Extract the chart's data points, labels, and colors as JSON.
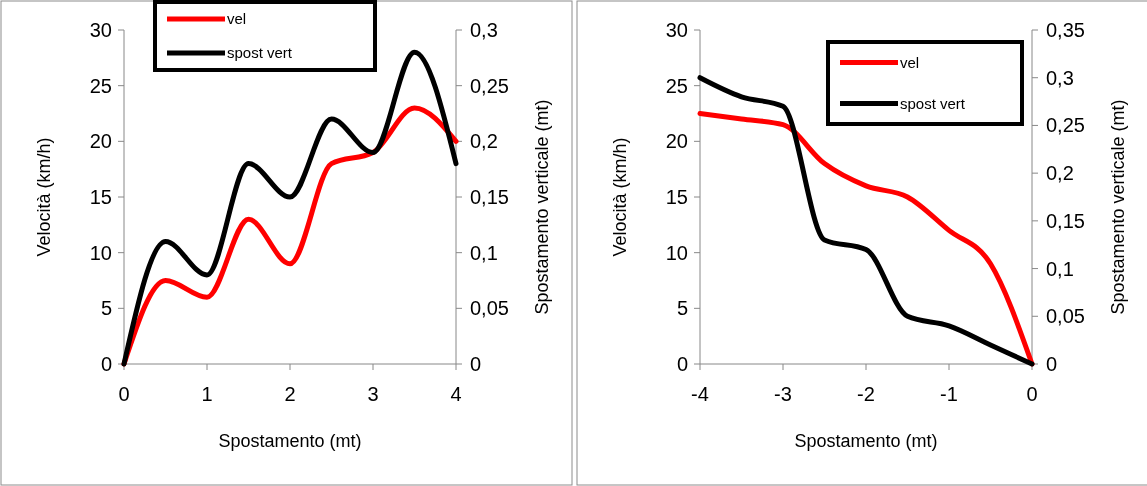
{
  "chart_data": [
    {
      "type": "line",
      "xlabel": "Spostamento (mt)",
      "ylabel": "Velocità (km/h)",
      "y2label": "Spostamento verticale (mt)",
      "x": [
        0,
        0.5,
        1,
        1.5,
        2,
        2.5,
        3,
        3.5,
        4
      ],
      "xlim": [
        0,
        4
      ],
      "xticks": [
        0,
        1,
        2,
        3,
        4
      ],
      "ylim": [
        0,
        30
      ],
      "yticks": [
        0,
        5,
        10,
        15,
        20,
        25,
        30
      ],
      "y2lim": [
        0,
        0.3
      ],
      "y2ticks": [
        0,
        {
          "value": 0.05,
          "label": "0,05"
        },
        {
          "value": 0.1,
          "label": "0,1"
        },
        {
          "value": 0.15,
          "label": "0,15"
        },
        {
          "value": 0.2,
          "label": "0,2"
        },
        {
          "value": 0.25,
          "label": "0,25"
        },
        {
          "value": 0.3,
          "label": "0,3"
        }
      ],
      "legend": "top left",
      "grid": false,
      "marker": "none",
      "line_style": "solid",
      "series": [
        {
          "name": "vel",
          "color": "#ff0000",
          "values": [
            0,
            7.5,
            6,
            13,
            9,
            18,
            19,
            23,
            20
          ]
        },
        {
          "name": "spost vert",
          "color": "#000000",
          "axis": "y2",
          "values": [
            0,
            0.11,
            0.08,
            0.18,
            0.15,
            0.22,
            0.19,
            0.28,
            0.18
          ]
        }
      ]
    },
    {
      "type": "line",
      "xlabel": "Spostamento (mt)",
      "ylabel": "Velocità (km/h)",
      "y2label": "Spostamento verticale (mt)",
      "x": [
        -4,
        -3.5,
        -3,
        -2.5,
        -2,
        -1.5,
        -1,
        -0.5,
        0
      ],
      "xlim": [
        -4,
        0
      ],
      "xticks": [
        -4,
        -3,
        -2,
        -1,
        0
      ],
      "ylim": [
        0,
        30
      ],
      "yticks": [
        0,
        5,
        10,
        15,
        20,
        25,
        30
      ],
      "y2lim": [
        0,
        0.35
      ],
      "y2ticks": [
        0,
        {
          "value": 0.05,
          "label": "0,05"
        },
        {
          "value": 0.1,
          "label": "0,1"
        },
        {
          "value": 0.15,
          "label": "0,15"
        },
        {
          "value": 0.2,
          "label": "0,2"
        },
        {
          "value": 0.25,
          "label": "0,25"
        },
        {
          "value": 0.3,
          "label": "0,3"
        },
        {
          "value": 0.35,
          "label": "0,35"
        }
      ],
      "legend": "top right",
      "grid": false,
      "marker": "none",
      "line_style": "solid",
      "series": [
        {
          "name": "vel",
          "color": "#ff0000",
          "values": [
            22.5,
            22,
            21.5,
            18,
            16,
            15,
            12,
            9,
            0
          ]
        },
        {
          "name": "spost vert",
          "color": "#000000",
          "axis": "y2",
          "values": [
            0.3,
            0.28,
            0.27,
            0.13,
            0.12,
            0.05,
            0.04,
            0.02,
            0
          ]
        }
      ]
    }
  ]
}
